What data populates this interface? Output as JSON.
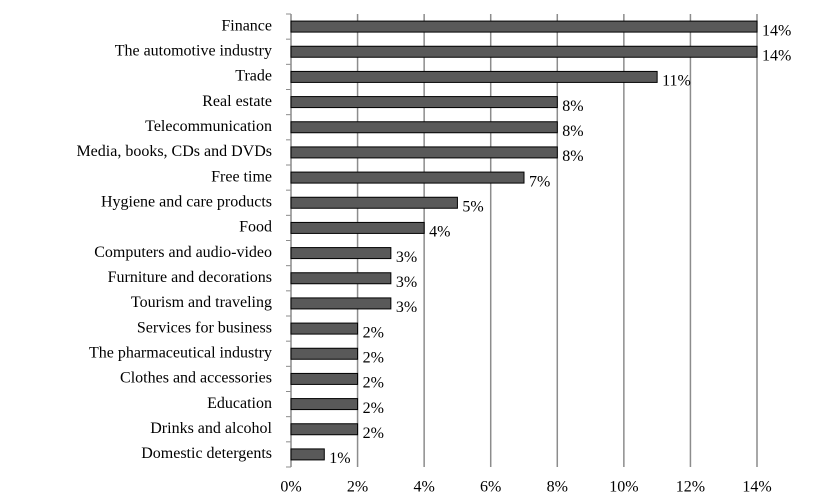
{
  "chart_data": {
    "type": "bar",
    "orientation": "horizontal",
    "categories": [
      "Finance",
      "The automotive industry",
      "Trade",
      "Real estate",
      "Telecommunication",
      "Media, books, CDs and DVDs",
      "Free time",
      "Hygiene and care products",
      "Food",
      "Computers and audio-video",
      "Furniture and decorations",
      "Tourism and traveling",
      "Services for business",
      "The pharmaceutical industry",
      "Clothes and accessories",
      "Education",
      "Drinks and alcohol",
      "Domestic detergents"
    ],
    "values": [
      14,
      14,
      11,
      8,
      8,
      8,
      7,
      5,
      4,
      3,
      3,
      3,
      2,
      2,
      2,
      2,
      2,
      1
    ],
    "value_labels": [
      "14%",
      "14%",
      "11%",
      "8%",
      "8%",
      "8%",
      "7%",
      "5%",
      "4%",
      "3%",
      "3%",
      "3%",
      "2%",
      "2%",
      "2%",
      "2%",
      "2%",
      "1%"
    ],
    "color": "#595959",
    "xlim": [
      0,
      14
    ],
    "xticks": [
      {
        "value": 0,
        "label": "0%"
      },
      {
        "value": 2,
        "label": "2%"
      },
      {
        "value": 4,
        "label": "4%"
      },
      {
        "value": 6,
        "label": "6%"
      },
      {
        "value": 8,
        "label": "8%"
      },
      {
        "value": 10,
        "label": "10%"
      },
      {
        "value": 12,
        "label": "12%"
      },
      {
        "value": 14,
        "label": "14%"
      }
    ],
    "grid": true
  }
}
